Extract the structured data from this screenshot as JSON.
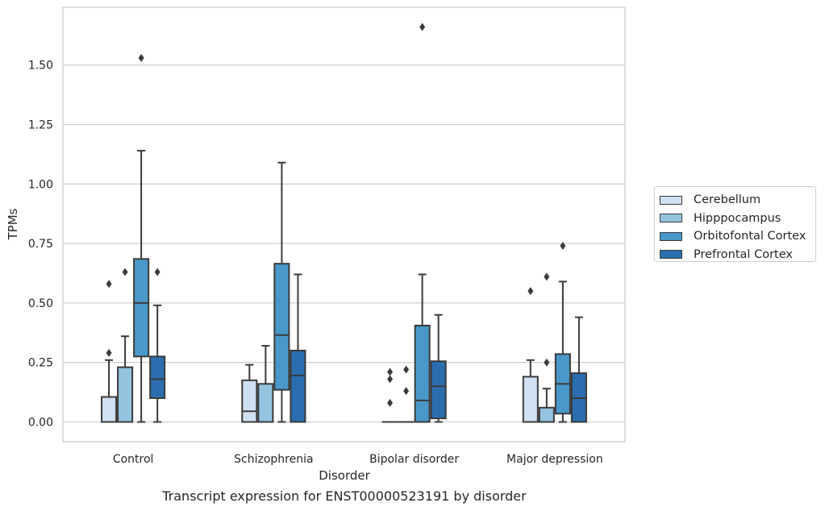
{
  "chart_data": {
    "type": "box",
    "title": "Transcript expression for ENST00000523191 by disorder",
    "xlabel": "Disorder",
    "ylabel": "TPMs",
    "ylim": [
      -0.08,
      1.75
    ],
    "yticks": [
      "0.00",
      "0.25",
      "0.50",
      "0.75",
      "1.00",
      "1.25",
      "1.50"
    ],
    "ytick_values": [
      0,
      0.25,
      0.5,
      0.75,
      1.0,
      1.25,
      1.5
    ],
    "grid": true,
    "legend_position": "right",
    "categories": [
      "Control",
      "Schizophrenia",
      "Bipolar disorder",
      "Major depression"
    ],
    "series": [
      {
        "name": "Cerebellum",
        "color": "#d0e1f2",
        "boxes": [
          {
            "min": 0,
            "q1": 0,
            "median": 0,
            "q3": 0.105,
            "max": 0.26,
            "outliers": [
              0.29,
              0.58
            ]
          },
          {
            "min": 0,
            "q1": 0,
            "median": 0.045,
            "q3": 0.175,
            "max": 0.24,
            "outliers": []
          },
          {
            "min": 0,
            "q1": 0,
            "median": 0,
            "q3": 0,
            "max": 0,
            "outliers": [
              0.08,
              0.18,
              0.21
            ]
          },
          {
            "min": 0,
            "q1": 0,
            "median": 0,
            "q3": 0.19,
            "max": 0.26,
            "outliers": [
              0.55
            ]
          }
        ]
      },
      {
        "name": "Hipppocampus",
        "color": "#94c4df",
        "boxes": [
          {
            "min": 0,
            "q1": 0,
            "median": 0,
            "q3": 0.23,
            "max": 0.36,
            "outliers": [
              0.63
            ]
          },
          {
            "min": 0,
            "q1": 0,
            "median": 0,
            "q3": 0.16,
            "max": 0.32,
            "outliers": []
          },
          {
            "min": 0,
            "q1": 0,
            "median": 0,
            "q3": 0,
            "max": 0,
            "outliers": [
              0.13,
              0.22
            ]
          },
          {
            "min": 0,
            "q1": 0,
            "median": 0,
            "q3": 0.06,
            "max": 0.14,
            "outliers": [
              0.25,
              0.61
            ]
          }
        ]
      },
      {
        "name": "Orbitofontal Cortex",
        "color": "#4a98c9",
        "boxes": [
          {
            "min": 0,
            "q1": 0.275,
            "median": 0.5,
            "q3": 0.685,
            "max": 1.14,
            "outliers": [
              1.53
            ]
          },
          {
            "min": 0,
            "q1": 0.135,
            "median": 0.365,
            "q3": 0.665,
            "max": 1.09,
            "outliers": []
          },
          {
            "min": 0,
            "q1": 0,
            "median": 0.09,
            "q3": 0.405,
            "max": 0.62,
            "outliers": [
              1.66
            ]
          },
          {
            "min": 0,
            "q1": 0.035,
            "median": 0.16,
            "q3": 0.285,
            "max": 0.59,
            "outliers": [
              0.74
            ]
          }
        ]
      },
      {
        "name": "Prefrontal Cortex",
        "color": "#2a6eb0",
        "boxes": [
          {
            "min": 0,
            "q1": 0.1,
            "median": 0.18,
            "q3": 0.275,
            "max": 0.49,
            "outliers": [
              0.63
            ]
          },
          {
            "min": 0,
            "q1": 0,
            "median": 0.195,
            "q3": 0.3,
            "max": 0.62,
            "outliers": []
          },
          {
            "min": 0,
            "q1": 0.015,
            "median": 0.15,
            "q3": 0.255,
            "max": 0.45,
            "outliers": []
          },
          {
            "min": 0,
            "q1": 0,
            "median": 0.1,
            "q3": 0.205,
            "max": 0.44,
            "outliers": []
          }
        ]
      }
    ]
  }
}
